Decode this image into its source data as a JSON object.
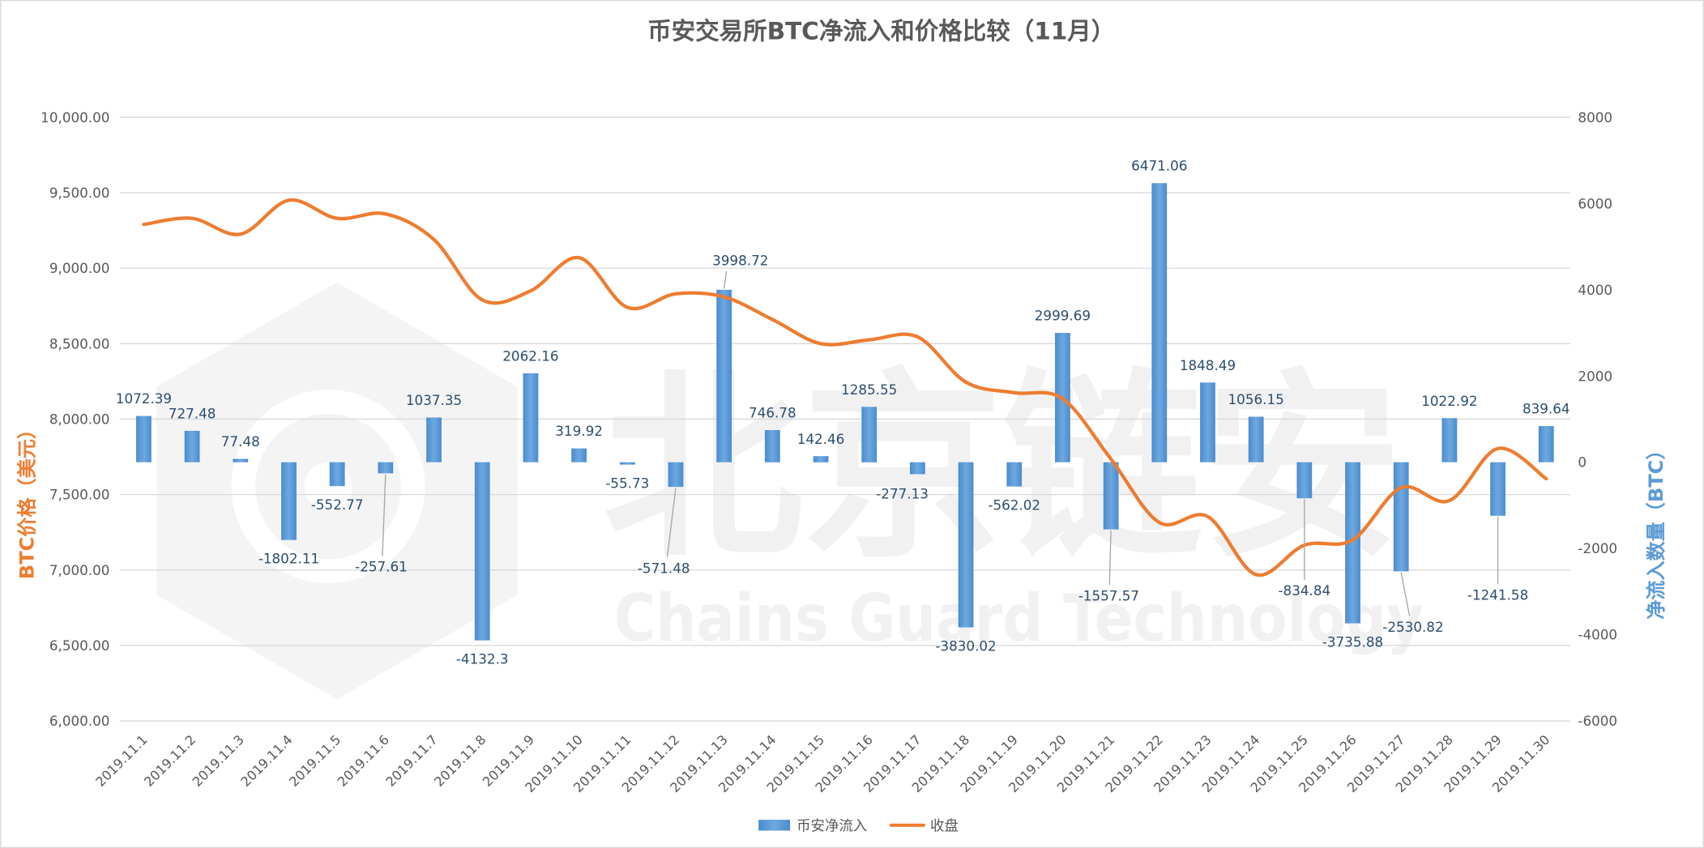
{
  "chart_data": {
    "type": "bar",
    "title": "币安交易所BTC净流入和价格比较（11月）",
    "categories": [
      "2019.11.1",
      "2019.11.2",
      "2019.11.3",
      "2019.11.4",
      "2019.11.5",
      "2019.11.6",
      "2019.11.7",
      "2019.11.8",
      "2019.11.9",
      "2019.11.10",
      "2019.11.11",
      "2019.11.12",
      "2019.11.13",
      "2019.11.14",
      "2019.11.15",
      "2019.11.16",
      "2019.11.17",
      "2019.11.18",
      "2019.11.19",
      "2019.11.20",
      "2019.11.21",
      "2019.11.22",
      "2019.11.23",
      "2019.11.24",
      "2019.11.25",
      "2019.11.26",
      "2019.11.27",
      "2019.11.28",
      "2019.11.29",
      "2019.11.30"
    ],
    "series": [
      {
        "name": "币安净流入",
        "type": "bar",
        "axis": "right",
        "color": "#5b9bd5",
        "data_labels": true,
        "values": [
          1072.39,
          727.48,
          77.48,
          -1802.11,
          -552.77,
          -257.61,
          1037.35,
          -4132.3,
          2062.16,
          319.92,
          -55.73,
          -571.48,
          3998.72,
          746.78,
          142.46,
          1285.55,
          -277.13,
          -3830.02,
          -562.02,
          2999.69,
          -1557.57,
          6471.06,
          1848.49,
          1056.15,
          -834.84,
          -3735.88,
          -2530.82,
          1022.92,
          -1241.58,
          839.64
        ]
      },
      {
        "name": "收盘",
        "type": "line",
        "axis": "left",
        "smooth": true,
        "color": "#ed7d31",
        "values": [
          9290,
          9330,
          9225,
          9450,
          9330,
          9360,
          9190,
          8790,
          8850,
          9070,
          8740,
          8830,
          8810,
          8660,
          8500,
          8525,
          8545,
          8245,
          8175,
          8135,
          7735,
          7315,
          7355,
          6970,
          7165,
          7200,
          7545,
          7460,
          7805,
          7605
        ]
      }
    ],
    "ylabel": "BTC价格（美元）",
    "ylabel_color": "#ed7d31",
    "ylim": [
      6000,
      10000
    ],
    "yticks": [
      10000,
      9500,
      9000,
      8500,
      8000,
      7500,
      7000,
      6500,
      6000
    ],
    "ytick_labels": [
      "10,000.00",
      "9,500.00",
      "9,000.00",
      "8,500.00",
      "8,000.00",
      "7,500.00",
      "7,000.00",
      "6,500.00",
      "6,000.00"
    ],
    "y2label": "净流入数量（BTC）",
    "y2label_color": "#5b9bd5",
    "y2lim": [
      -6000,
      8000
    ],
    "y2ticks": [
      8000,
      6000,
      4000,
      2000,
      0,
      -2000,
      -4000,
      -6000
    ],
    "y2tick_labels": [
      "8000",
      "6000",
      "4000",
      "2000",
      "0",
      "-2000",
      "-4000",
      "-6000"
    ],
    "grid": true,
    "legend": "bottom"
  },
  "watermark": {
    "text": "北京链安",
    "subtext": "Chains Guard Technology"
  }
}
